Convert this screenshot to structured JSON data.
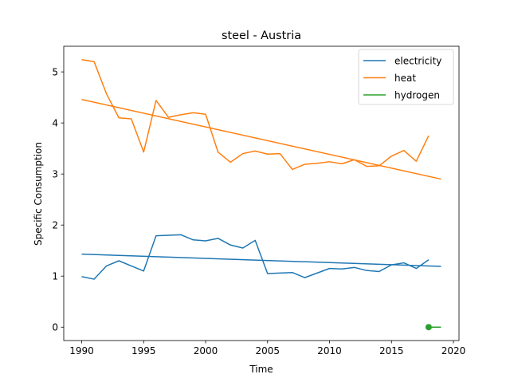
{
  "chart_data": {
    "type": "line",
    "title": "steel - Austria",
    "xlabel": "Time",
    "ylabel": "Specific Consumption",
    "xlim": [
      1988.55,
      2020.45
    ],
    "ylim": [
      -0.262,
      5.502
    ],
    "xticks": [
      1990,
      1995,
      2000,
      2005,
      2010,
      2015,
      2020
    ],
    "yticks": [
      0,
      1,
      2,
      3,
      4,
      5
    ],
    "grid": false,
    "legend_position": "top-right",
    "series": [
      {
        "name": "electricity",
        "color": "#1f77b4",
        "x": [
          1990,
          1991,
          1992,
          1993,
          1994,
          1995,
          1996,
          1997,
          1998,
          1999,
          2000,
          2001,
          2002,
          2003,
          2004,
          2005,
          2006,
          2007,
          2008,
          2009,
          2010,
          2011,
          2012,
          2013,
          2014,
          2015,
          2016,
          2017,
          2018
        ],
        "y": [
          0.99,
          0.94,
          1.2,
          1.3,
          1.2,
          1.1,
          1.79,
          1.8,
          1.81,
          1.71,
          1.69,
          1.74,
          1.61,
          1.55,
          1.7,
          1.05,
          1.06,
          1.07,
          0.97,
          1.06,
          1.15,
          1.14,
          1.17,
          1.11,
          1.09,
          1.22,
          1.26,
          1.15,
          1.32
        ]
      },
      {
        "name": "electricity trend",
        "color": "#1f77b4",
        "x": [
          1990,
          2019
        ],
        "y": [
          1.43,
          1.19
        ]
      },
      {
        "name": "heat",
        "color": "#ff7f0e",
        "x": [
          1990,
          1991,
          1992,
          1993,
          1994,
          1995,
          1996,
          1997,
          1998,
          1999,
          2000,
          2001,
          2002,
          2003,
          2004,
          2005,
          2006,
          2007,
          2008,
          2009,
          2010,
          2011,
          2012,
          2013,
          2014,
          2015,
          2016,
          2017,
          2018
        ],
        "y": [
          5.24,
          5.2,
          4.57,
          4.1,
          4.08,
          3.43,
          4.44,
          4.11,
          4.16,
          4.2,
          4.17,
          3.43,
          3.23,
          3.4,
          3.45,
          3.39,
          3.4,
          3.09,
          3.19,
          3.21,
          3.24,
          3.2,
          3.28,
          3.15,
          3.16,
          3.35,
          3.46,
          3.25,
          3.75
        ]
      },
      {
        "name": "heat trend",
        "color": "#ff7f0e",
        "x": [
          1990,
          2019
        ],
        "y": [
          4.46,
          2.9
        ]
      },
      {
        "name": "hydrogen",
        "color": "#2ca02c",
        "x": [
          2018,
          2019
        ],
        "y": [
          0,
          0
        ],
        "marker_at": [
          2018,
          0
        ]
      }
    ],
    "legend": [
      {
        "label": "electricity",
        "color": "#1f77b4"
      },
      {
        "label": "heat",
        "color": "#ff7f0e"
      },
      {
        "label": "hydrogen",
        "color": "#2ca02c"
      }
    ]
  }
}
